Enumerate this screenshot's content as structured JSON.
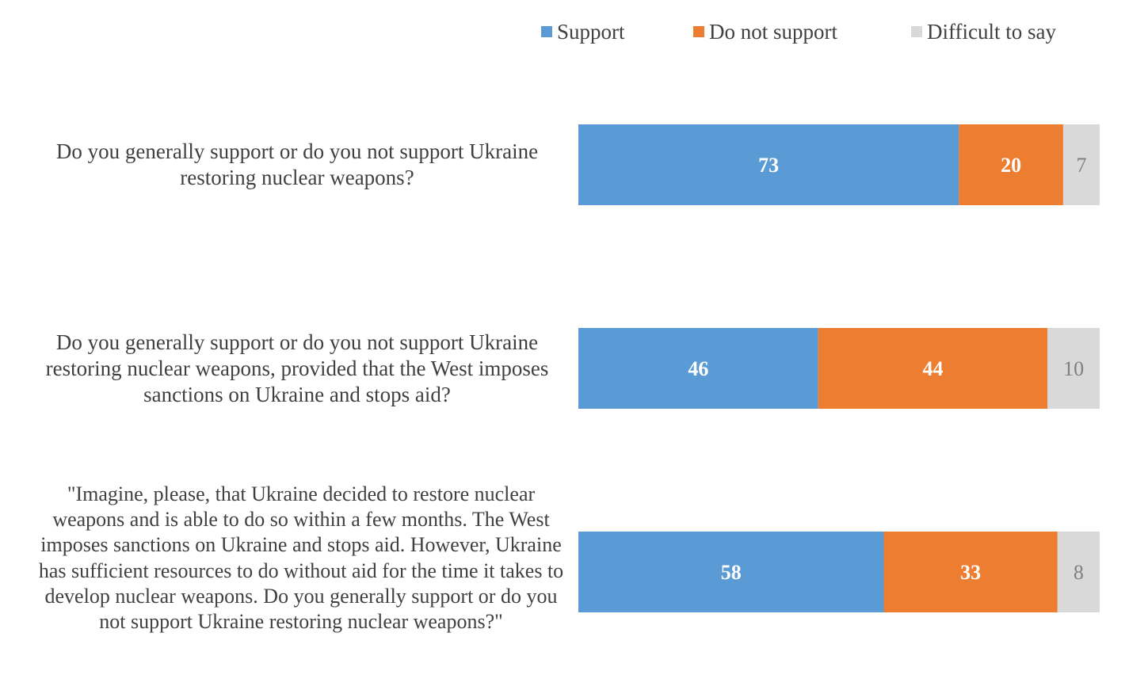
{
  "chart_data": {
    "type": "bar",
    "orientation": "horizontal",
    "stacked": true,
    "grid": false,
    "legend_position": "top-right",
    "categories": [
      "Do you generally support or do you not support Ukraine restoring nuclear weapons?",
      "Do you generally support or do you not support Ukraine restoring nuclear weapons, provided that the West imposes sanctions on Ukraine and stops aid?",
      "\"Imagine, please, that Ukraine decided to restore nuclear weapons and is able to do so within a few months. The West imposes sanctions on Ukraine and stops aid. However, Ukraine has sufficient resources to do without aid for the time it takes to develop nuclear weapons. Do you generally support or do you not support Ukraine restoring nuclear weapons?\""
    ],
    "series": [
      {
        "name": "Support",
        "color": "#5b9bd5",
        "label_color": "#ffffff",
        "values": [
          73,
          46,
          58
        ]
      },
      {
        "name": "Do not support",
        "color": "#ed7d31",
        "label_color": "#ffffff",
        "values": [
          20,
          44,
          33
        ]
      },
      {
        "name": "Difficult to say",
        "color": "#d9d9d9",
        "label_color": "#7f7f7f",
        "values": [
          7,
          10,
          8
        ]
      }
    ],
    "xlim": [
      0,
      100
    ]
  }
}
